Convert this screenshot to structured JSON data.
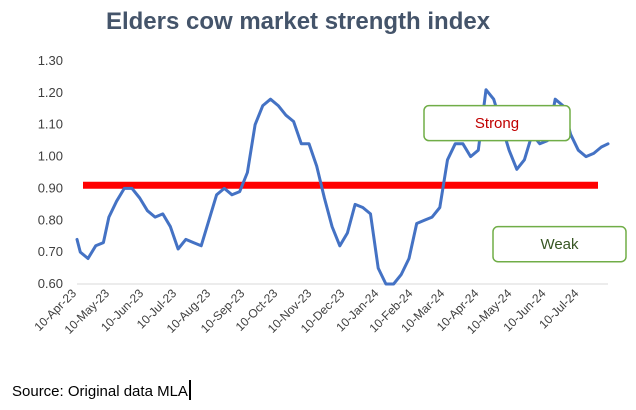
{
  "chart_data": {
    "type": "line",
    "title": "Elders cow market strength index",
    "xlabel": "",
    "ylabel": "",
    "ylim": [
      0.6,
      1.3
    ],
    "y_ticks": [
      "1.30",
      "1.20",
      "1.10",
      "1.00",
      "0.90",
      "0.80",
      "0.70",
      "0.60"
    ],
    "y_tick_values": [
      1.3,
      1.2,
      1.1,
      1.0,
      0.9,
      0.8,
      0.7,
      0.6
    ],
    "x_tick_labels": [
      "10-Apr-23",
      "10-May-23",
      "10-Jun-23",
      "10-Jul-23",
      "10-Aug-23",
      "10-Sep-23",
      "10-Oct-23",
      "10-Nov-23",
      "10-Dec-23",
      "10-Jan-24",
      "10-Feb-24",
      "10-Mar-24",
      "10-Apr-24",
      "10-May-24",
      "10-Jun-24",
      "10-Jul-24"
    ],
    "x_tick_dates": [
      "2023-04-10",
      "2023-05-10",
      "2023-06-10",
      "2023-07-10",
      "2023-08-10",
      "2023-09-10",
      "2023-10-10",
      "2023-11-10",
      "2023-12-10",
      "2024-01-10",
      "2024-02-10",
      "2024-03-10",
      "2024-04-10",
      "2024-05-10",
      "2024-06-10",
      "2024-07-10"
    ],
    "x_range": [
      "2023-04-10",
      "2024-08-05"
    ],
    "series": [
      {
        "color": "#4472c4",
        "x": [
          "2023-04-10",
          "2023-04-13",
          "2023-04-20",
          "2023-04-27",
          "2023-05-04",
          "2023-05-09",
          "2023-05-16",
          "2023-05-23",
          "2023-05-30",
          "2023-06-06",
          "2023-06-13",
          "2023-06-20",
          "2023-06-27",
          "2023-07-04",
          "2023-07-11",
          "2023-07-18",
          "2023-07-25",
          "2023-08-01",
          "2023-08-08",
          "2023-08-15",
          "2023-08-22",
          "2023-08-29",
          "2023-09-05",
          "2023-09-12",
          "2023-09-19",
          "2023-09-26",
          "2023-10-03",
          "2023-10-10",
          "2023-10-17",
          "2023-10-24",
          "2023-10-31",
          "2023-11-07",
          "2023-11-14",
          "2023-11-21",
          "2023-11-28",
          "2023-12-05",
          "2023-12-12",
          "2023-12-19",
          "2023-12-26",
          "2024-01-02",
          "2024-01-09",
          "2024-01-16",
          "2024-01-23",
          "2024-01-30",
          "2024-02-06",
          "2024-02-13",
          "2024-02-20",
          "2024-02-27",
          "2024-03-05",
          "2024-03-12",
          "2024-03-19",
          "2024-03-26",
          "2024-04-02",
          "2024-04-09",
          "2024-04-16",
          "2024-04-23",
          "2024-04-30",
          "2024-05-07",
          "2024-05-14",
          "2024-05-21",
          "2024-05-28",
          "2024-06-04",
          "2024-06-11",
          "2024-06-18",
          "2024-06-25",
          "2024-07-02",
          "2024-07-09",
          "2024-07-16",
          "2024-07-23",
          "2024-07-30",
          "2024-08-05"
        ],
        "y": [
          0.74,
          0.7,
          0.68,
          0.72,
          0.73,
          0.81,
          0.86,
          0.9,
          0.9,
          0.87,
          0.83,
          0.81,
          0.82,
          0.78,
          0.71,
          0.74,
          0.73,
          0.72,
          0.8,
          0.88,
          0.9,
          0.88,
          0.89,
          0.95,
          1.1,
          1.16,
          1.18,
          1.16,
          1.13,
          1.11,
          1.04,
          1.04,
          0.97,
          0.87,
          0.78,
          0.72,
          0.76,
          0.85,
          0.84,
          0.82,
          0.65,
          0.6,
          0.6,
          0.63,
          0.68,
          0.79,
          0.8,
          0.81,
          0.84,
          0.99,
          1.04,
          1.04,
          1.0,
          1.02,
          1.21,
          1.18,
          1.1,
          1.02,
          0.96,
          0.99,
          1.07,
          1.04,
          1.05,
          1.18,
          1.16,
          1.07,
          1.02,
          1.0,
          1.01,
          1.03,
          1.04
        ]
      }
    ],
    "reference_line": {
      "y": 0.91,
      "color": "#ff0000"
    },
    "annotations": [
      {
        "text": "Strong",
        "text_color": "#c00000",
        "border_color": "#70ad47",
        "box_y_range": [
          1.05,
          1.16
        ]
      },
      {
        "text": "Weak",
        "text_color": "#375623",
        "border_color": "#70ad47",
        "box_y_range": [
          0.67,
          0.78
        ]
      }
    ],
    "grid": false,
    "legend": "none"
  },
  "source": {
    "text": "Source: Original data MLA"
  }
}
